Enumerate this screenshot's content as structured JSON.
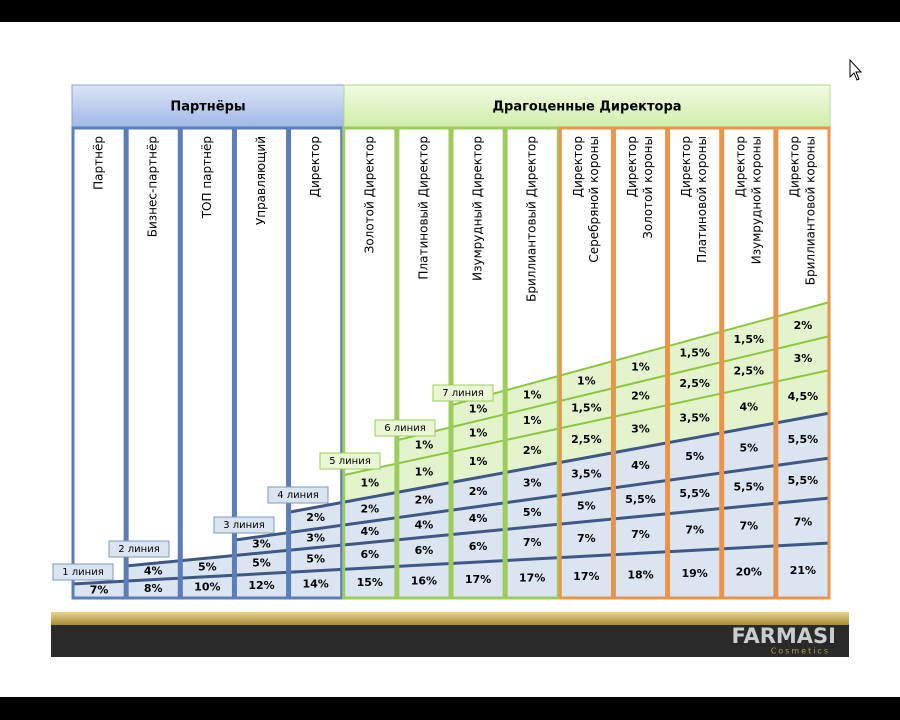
{
  "header": {
    "groups": [
      {
        "label": "Партнёры"
      },
      {
        "label": "Драгоценные Директора"
      }
    ]
  },
  "columns": [
    {
      "label": [
        "Партнёр"
      ],
      "values": [
        "7%"
      ]
    },
    {
      "label": [
        "Бизнес-партнёр"
      ],
      "values": [
        "8%",
        "4%"
      ]
    },
    {
      "label": [
        "ТОП партнёр"
      ],
      "values": [
        "10%",
        "5%"
      ]
    },
    {
      "label": [
        "Управляющий"
      ],
      "values": [
        "12%",
        "5%",
        "3%"
      ]
    },
    {
      "label": [
        "Директор"
      ],
      "values": [
        "14%",
        "5%",
        "3%",
        "2%"
      ]
    },
    {
      "label": [
        "Золотой Директор"
      ],
      "values": [
        "15%",
        "6%",
        "4%",
        "2%",
        "1%"
      ]
    },
    {
      "label": [
        "Платиновый Директор"
      ],
      "values": [
        "16%",
        "6%",
        "4%",
        "2%",
        "1%",
        "1%"
      ]
    },
    {
      "label": [
        "Изумрудный Директор"
      ],
      "values": [
        "17%",
        "6%",
        "4%",
        "2%",
        "1%",
        "1%",
        "1%"
      ]
    },
    {
      "label": [
        "Бриллиантовый Директор"
      ],
      "values": [
        "17%",
        "7%",
        "5%",
        "3%",
        "2%",
        "1%",
        "1%"
      ]
    },
    {
      "label": [
        "Директор",
        "Серебряной короны"
      ],
      "values": [
        "17%",
        "7%",
        "5%",
        "3,5%",
        "2,5%",
        "1,5%",
        "1%"
      ]
    },
    {
      "label": [
        "Директор",
        "Золотой короны"
      ],
      "values": [
        "18%",
        "7%",
        "5,5%",
        "4%",
        "3%",
        "2%",
        "1%"
      ]
    },
    {
      "label": [
        "Директор",
        "Платиновой короны"
      ],
      "values": [
        "19%",
        "7%",
        "5,5%",
        "5%",
        "3,5%",
        "2,5%",
        "1,5%"
      ]
    },
    {
      "label": [
        "Директор",
        "Изумрудной короны"
      ],
      "values": [
        "20%",
        "7%",
        "5,5%",
        "5%",
        "4%",
        "2,5%",
        "1,5%"
      ]
    },
    {
      "label": [
        "Директор",
        "Бриллиантовой короны"
      ],
      "values": [
        "21%",
        "7%",
        "5,5%",
        "5,5%",
        "4,5%",
        "3%",
        "2%"
      ]
    }
  ],
  "line_labels": [
    "1 линия",
    "2 линия",
    "3 линия",
    "4 линия",
    "5 линия",
    "6 линия",
    "7 линия"
  ],
  "footer": {
    "brand": "FARMASI",
    "tagline": "Cosmetics"
  }
}
